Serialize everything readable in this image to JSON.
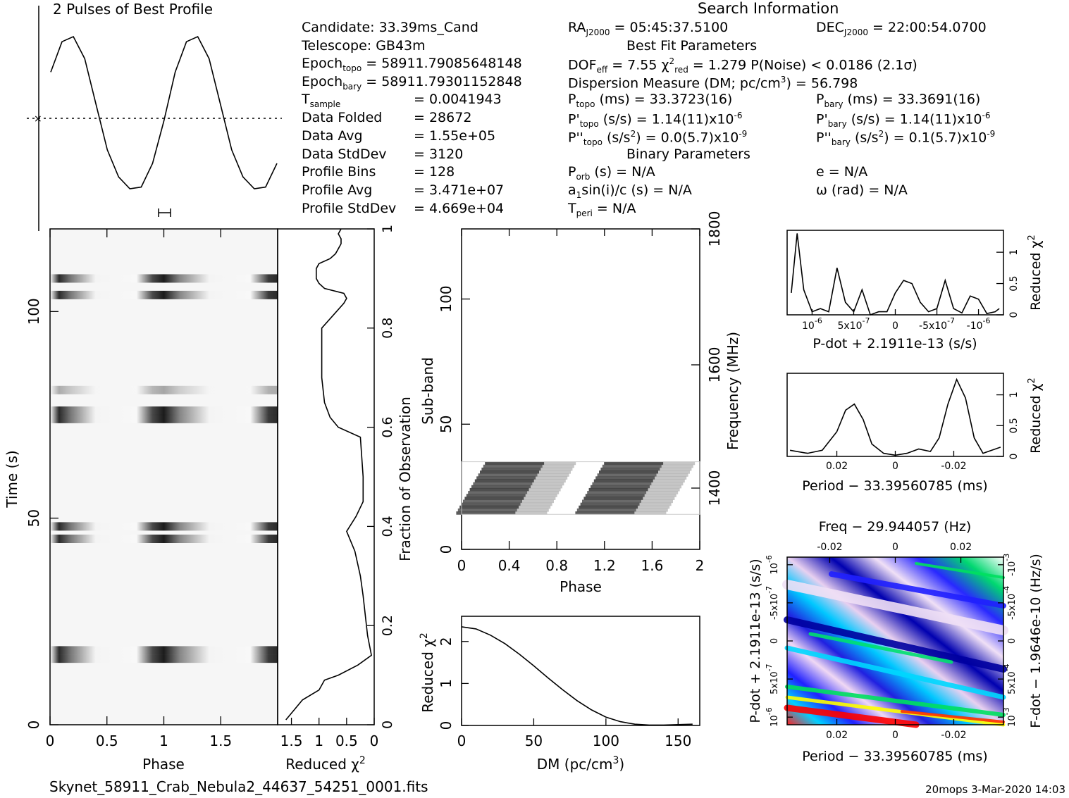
{
  "footer": {
    "filename": "Skynet_58911_Crab_Nebula2_44637_54251_0001.fits",
    "stamp": "20mops  3-Mar-2020 14:03"
  },
  "info": {
    "candidate": "Candidate:  33.39ms_Cand",
    "telescope": "Telescope:  GB43m",
    "epoch_topo": "Epoch",
    "epoch_topo_sub": "topo",
    "epoch_topo_val": " = 58911.79085648148",
    "epoch_bary": "Epoch",
    "epoch_bary_sub": "bary",
    "epoch_bary_val": " = 58911.79301152848",
    "tsample": "T",
    "tsample_sub": "sample",
    "tsample_val": "=   0.0041943",
    "data_folded": "Data Folded",
    "data_folded_val": "=   28672",
    "data_avg": "Data Avg",
    "data_avg_val": "=   1.55e+05",
    "data_std": "Data StdDev",
    "data_std_val": "=   3120",
    "prof_bins": "Profile Bins",
    "prof_bins_val": "=   128",
    "prof_avg": "Profile Avg",
    "prof_avg_val": "=   3.471e+07",
    "prof_std": "Profile StdDev",
    "prof_std_val": "=   4.669e+04",
    "search_info": "Search Information",
    "ra": "RA",
    "ra_sub": "J2000",
    "ra_val": " = 05:45:37.5100",
    "dec": "DEC",
    "dec_sub": "J2000",
    "dec_val": " = 22:00:54.0700",
    "best_fit": "Best Fit Parameters",
    "dof": "DOF",
    "dof_sub": "eff",
    "dof_val": " = 7.55  ",
    "chi": "χ",
    "chi_sup": "2",
    "chi_sub": "red",
    "chi_val": " = 1.279  P(Noise) < 0.0186  (2.1σ)",
    "dm_line": "Dispersion Measure (DM; pc/cm",
    "dm_line_sup": "3",
    "dm_line_val": ") = 56.798",
    "ptopo": "P",
    "ptopo_sub": "topo",
    "ptopo_val": " (ms) =  33.3723(16)",
    "pbary": "P",
    "pbary_sub": "bary",
    "pbary_val": " (ms) =  33.3691(16)",
    "pdtopo": "P'",
    "pdtopo_sub": "topo",
    "pdtopo_val": " (s/s) =  1.14(11)x10",
    "pdtopo_exp": "-6",
    "pdbary": "P'",
    "pdbary_sub": "bary",
    "pdbary_val": " (s/s) =  1.14(11)x10",
    "pdbary_exp": "-6",
    "pddtopo": "P''",
    "pddtopo_sub": "topo",
    "pddtopo_val": " (s/s",
    "pddtopo_sup": "2",
    "pddtopo_val2": ") = 0.0(5.7)x10",
    "pddtopo_exp": "-9",
    "pddbary": "P''",
    "pddbary_sub": "bary",
    "pddbary_val": " (s/s",
    "pddbary_sup": "2",
    "pddbary_val2": ") =  0.1(5.7)x10",
    "pddbary_exp": "-9",
    "binary": "Binary Parameters",
    "porb": "P",
    "porb_sub": "orb",
    "porb_val": " (s) = N/A",
    "ecc": "e = N/A",
    "a1": "a",
    "a1_sub": "1",
    "a1_val": "sin(i)/c (s) = N/A",
    "omega": "ω (rad) = N/A",
    "tperi": "T",
    "tperi_sub": "peri",
    "tperi_val": " = N/A"
  },
  "chart_data": [
    {
      "type": "line",
      "name": "profile",
      "title": "2 Pulses of Best Profile",
      "x_range": [
        0,
        2
      ],
      "y_range": [
        0.0,
        1.0
      ],
      "x": [
        0.0,
        0.1,
        0.2,
        0.3,
        0.4,
        0.5,
        0.6,
        0.7,
        0.8,
        0.9,
        1.0,
        1.1,
        1.2,
        1.3,
        1.4,
        1.5,
        1.6,
        1.7,
        1.8,
        1.9,
        2.0
      ],
      "y": [
        0.74,
        0.92,
        0.95,
        0.82,
        0.55,
        0.28,
        0.12,
        0.05,
        0.06,
        0.2,
        0.45,
        0.74,
        0.92,
        0.95,
        0.82,
        0.55,
        0.28,
        0.12,
        0.05,
        0.06,
        0.2
      ]
    },
    {
      "type": "heatmap",
      "name": "time-phase",
      "xlabel": "Phase",
      "ylabel": "Time (s)",
      "xlim": [
        0,
        2
      ],
      "ylim": [
        0,
        120
      ],
      "xticks": [
        "0",
        "0.5",
        "1",
        "1.5"
      ],
      "yticks": [
        "0",
        "50",
        "100"
      ],
      "dark_bands_s": [
        16,
        18,
        45,
        48,
        74,
        76,
        104,
        108,
        81
      ],
      "dark_phases": [
        0.1,
        0.97,
        1.95
      ]
    },
    {
      "type": "line",
      "name": "time-reduced-chi2",
      "xlabel": "Reduced χ",
      "xlabel_sup": "2",
      "ylabel_right": "Fraction of Observation",
      "xticks": [
        "1.5",
        "1",
        "0.5",
        "0"
      ],
      "yticks_right": [
        "0",
        "0.2",
        "0.4",
        "0.6",
        "0.8",
        "1"
      ],
      "xlim": [
        1.75,
        0
      ],
      "ylim": [
        0,
        1
      ],
      "x": [
        1.6,
        1.45,
        1.3,
        1.0,
        0.9,
        0.65,
        0.3,
        0.05,
        0.12,
        0.2,
        0.25,
        0.35,
        0.5,
        0.33,
        0.2,
        0.2,
        0.25,
        0.65,
        0.8,
        0.9,
        0.95,
        0.95,
        0.55,
        0.5,
        0.55,
        0.9,
        1.0,
        1.05,
        1.05,
        1.0,
        0.8,
        0.7,
        0.65,
        0.6,
        0.6,
        0.65,
        0.6
      ],
      "y": [
        0.01,
        0.03,
        0.05,
        0.07,
        0.09,
        0.1,
        0.12,
        0.14,
        0.18,
        0.26,
        0.3,
        0.35,
        0.39,
        0.42,
        0.45,
        0.5,
        0.58,
        0.6,
        0.62,
        0.65,
        0.7,
        0.8,
        0.85,
        0.86,
        0.87,
        0.88,
        0.89,
        0.9,
        0.92,
        0.93,
        0.94,
        0.95,
        0.96,
        0.97,
        0.98,
        0.99,
        1.0
      ]
    },
    {
      "type": "heatmap",
      "name": "subband-phase",
      "xlabel": "Phase",
      "ylabel": "Sub-band",
      "ylabel_right": "Frequency (MHz)",
      "xticks": [
        "0",
        "0.4",
        "0.8",
        "1.2",
        "1.6",
        "2"
      ],
      "yticks": [
        "0",
        "50",
        "100"
      ],
      "yticks_right": [
        "1400",
        "1600",
        "1800"
      ],
      "xlim": [
        0,
        2
      ],
      "ylim": [
        0,
        128
      ],
      "band_range": [
        14,
        35
      ]
    },
    {
      "type": "line",
      "name": "dm-chi2",
      "xlabel": "DM (pc/cm",
      "xlabel_sup": "3",
      "xlabel_end": ")",
      "ylabel": "Reduced χ",
      "ylabel_sup": "2",
      "xticks": [
        "0",
        "50",
        "100",
        "150"
      ],
      "yticks": [
        "0",
        "1",
        "2"
      ],
      "xlim": [
        0,
        165
      ],
      "ylim": [
        0,
        2.6
      ],
      "x": [
        0,
        10,
        20,
        30,
        40,
        50,
        60,
        70,
        80,
        90,
        100,
        110,
        120,
        130,
        140,
        150,
        160
      ],
      "y": [
        2.35,
        2.3,
        2.15,
        1.95,
        1.7,
        1.42,
        1.13,
        0.85,
        0.59,
        0.37,
        0.2,
        0.09,
        0.03,
        0.01,
        0.01,
        0.02,
        0.03
      ]
    },
    {
      "type": "line",
      "name": "pdot-chi2",
      "xlabel": "P-dot + 2.1911e-13 (s/s)",
      "ylabel_right": "Reduced χ",
      "ylabel_right_sup": "2",
      "xticks": [
        "10",
        "5x10",
        "0",
        "-5x10",
        "-10"
      ],
      "xticks_exp": [
        "-6",
        "-7",
        "",
        "-7",
        "-6"
      ],
      "yticks_right": [
        "0",
        "0.5",
        "1"
      ],
      "xlim": [
        1.3,
        -1.3
      ],
      "ylim": [
        0,
        1.35
      ],
      "x": [
        1.25,
        1.18,
        1.1,
        1.0,
        0.9,
        0.8,
        0.7,
        0.6,
        0.5,
        0.4,
        0.3,
        0.2,
        0.1,
        0.0,
        -0.1,
        -0.2,
        -0.3,
        -0.4,
        -0.5,
        -0.6,
        -0.7,
        -0.8,
        -0.9,
        -1.0,
        -1.1,
        -1.2,
        -1.25
      ],
      "y": [
        0.35,
        1.3,
        0.4,
        0.05,
        0.1,
        0.05,
        0.75,
        0.2,
        0.05,
        0.4,
        0.0,
        0.05,
        0.05,
        0.35,
        0.55,
        0.5,
        0.2,
        0.05,
        0.1,
        0.55,
        0.1,
        0.03,
        0.3,
        0.25,
        0.02,
        0.05,
        0.1
      ]
    },
    {
      "type": "line",
      "name": "period-chi2",
      "xlabel": "Period − 33.39560785 (ms)",
      "ylabel_right": "Reduced χ",
      "ylabel_right_sup": "2",
      "xticks": [
        "0.02",
        "0",
        "-0.02"
      ],
      "yticks_right": [
        "0",
        "0.5",
        "1"
      ],
      "xlim": [
        0.037,
        -0.037
      ],
      "ylim": [
        0,
        1.35
      ],
      "x": [
        0.036,
        0.03,
        0.025,
        0.02,
        0.017,
        0.014,
        0.011,
        0.008,
        0.004,
        0.0,
        -0.004,
        -0.008,
        -0.012,
        -0.015,
        -0.018,
        -0.021,
        -0.024,
        -0.027,
        -0.03,
        -0.033,
        -0.036
      ],
      "y": [
        0.1,
        0.05,
        0.1,
        0.4,
        0.75,
        0.85,
        0.6,
        0.2,
        0.05,
        0.02,
        0.05,
        0.12,
        0.08,
        0.3,
        0.85,
        1.25,
        0.95,
        0.3,
        0.05,
        0.1,
        0.15
      ]
    },
    {
      "type": "heatmap",
      "name": "period-pdot",
      "title": "Freq − 29.944057 (Hz)",
      "xlabel": "Period − 33.39560785 (ms)",
      "ylabel": "P-dot + 2.1911e-13 (s/s)",
      "ylabel_right": "F-dot − 1.9646e-10 (Hz/s)",
      "xticks": [
        "0.02",
        "0",
        "-0.02"
      ],
      "top_ticks": [
        "-0.02",
        "0",
        "0.02"
      ],
      "yticks": [
        "10",
        "5x10",
        "0",
        "-5x10",
        "10"
      ],
      "yticks_exp": [
        "-6",
        "-7",
        "",
        "-7",
        "-6"
      ],
      "yticks_right": [
        "-10",
        "-5x10",
        "0",
        "5x10",
        "10"
      ],
      "yticks_right_exp": [
        "-3",
        "-4",
        "",
        "-4",
        "-3"
      ],
      "colors": [
        "#ffffff",
        "#e8c8f0",
        "#3030ff",
        "#0000a0",
        "#00d0ff",
        "#00e060",
        "#ffff00",
        "#ff0000"
      ]
    }
  ]
}
